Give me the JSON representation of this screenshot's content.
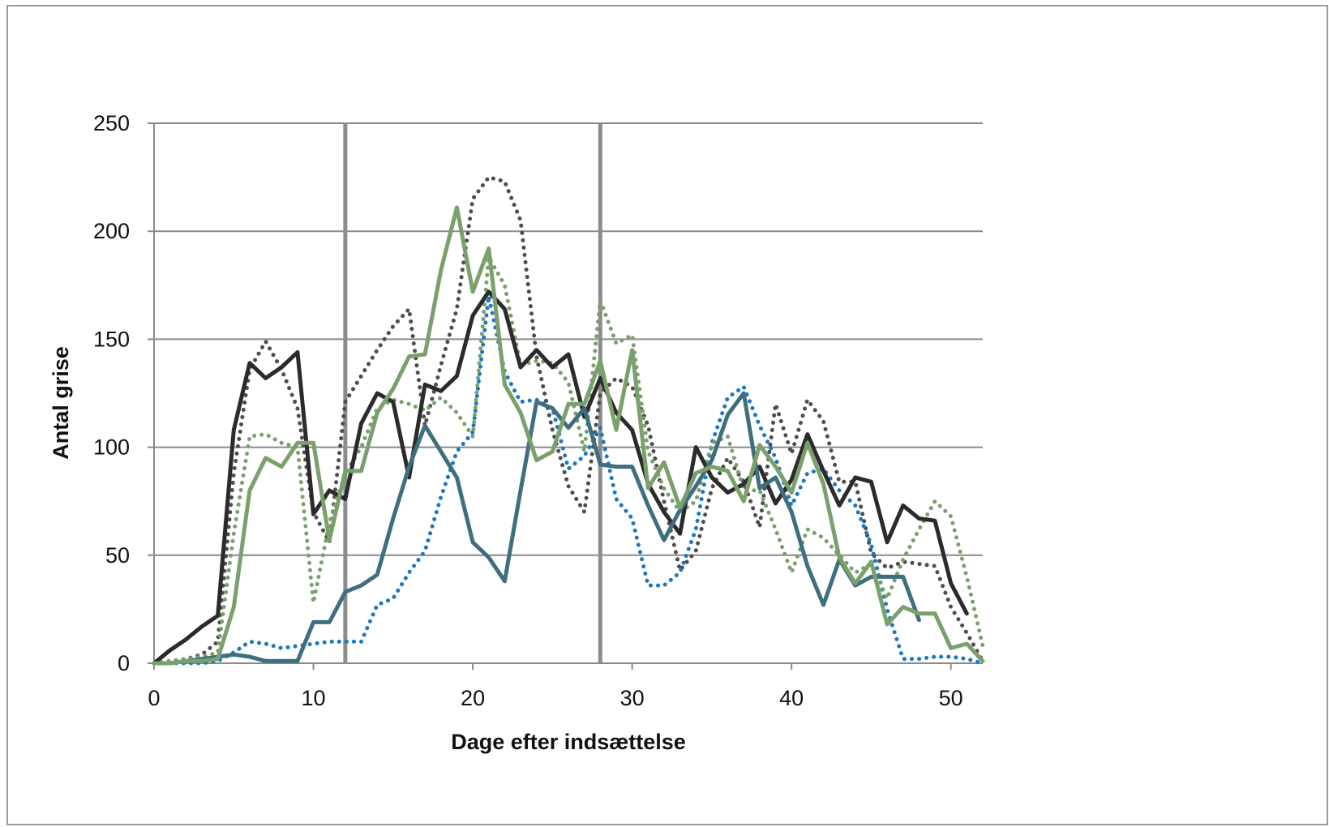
{
  "chart_data": {
    "type": "line",
    "xlabel": "Dage efter indsættelse",
    "ylabel": "Antal grise",
    "xlim": [
      0,
      52
    ],
    "ylim": [
      0,
      250
    ],
    "xticks": [
      "0",
      "10",
      "20",
      "30",
      "40",
      "50"
    ],
    "yticks": [
      "0",
      "50",
      "100",
      "150",
      "200",
      "250"
    ],
    "grid": "horizontal",
    "vlines": [
      12,
      28
    ],
    "vline_color": "#8c8c8c",
    "series": [
      {
        "style": "solid",
        "color": "#2b2b2b",
        "x": [
          0,
          1,
          2,
          3,
          4,
          5,
          6,
          7,
          8,
          9,
          10,
          11,
          12,
          13,
          14,
          15,
          16,
          17,
          18,
          19,
          20,
          21,
          22,
          23,
          24,
          25,
          26,
          27,
          28,
          29,
          30,
          31,
          32,
          33,
          34,
          35,
          36,
          37,
          38,
          39,
          40,
          41,
          42,
          43,
          44,
          45,
          46,
          47,
          48,
          49,
          50,
          51
        ],
        "y": [
          0,
          6,
          11,
          17,
          22,
          108,
          139,
          132,
          137,
          144,
          69,
          80,
          76,
          111,
          125,
          121,
          86,
          129,
          126,
          133,
          161,
          172,
          164,
          137,
          145,
          137,
          143,
          114,
          132,
          116,
          108,
          83,
          70,
          60,
          100,
          86,
          79,
          83,
          91,
          74,
          85,
          106,
          89,
          73,
          86,
          84,
          56,
          73,
          67,
          66,
          37,
          23
        ]
      },
      {
        "style": "dotted",
        "color": "#4d4d4d",
        "x": [
          0,
          1,
          2,
          3,
          4,
          5,
          6,
          7,
          8,
          9,
          10,
          11,
          12,
          13,
          14,
          15,
          16,
          17,
          18,
          19,
          20,
          21,
          22,
          23,
          24,
          25,
          26,
          27,
          28,
          29,
          30,
          31,
          32,
          33,
          34,
          35,
          36,
          37,
          38,
          39,
          40,
          41,
          42,
          43,
          44,
          45,
          46,
          47,
          48,
          49,
          50,
          51,
          52
        ],
        "y": [
          0,
          1,
          2,
          4,
          10,
          88,
          136,
          149,
          136,
          118,
          70,
          56,
          121,
          133,
          145,
          156,
          164,
          110,
          138,
          164,
          215,
          225,
          223,
          205,
          142,
          108,
          82,
          70,
          125,
          132,
          128,
          110,
          75,
          43,
          52,
          81,
          95,
          84,
          63,
          120,
          97,
          122,
          112,
          84,
          84,
          51,
          44,
          47,
          46,
          45,
          26,
          14,
          1
        ]
      },
      {
        "style": "dotted",
        "color": "#1a78c2",
        "x": [
          0,
          1,
          2,
          3,
          4,
          5,
          6,
          7,
          8,
          9,
          10,
          11,
          12,
          13,
          14,
          15,
          16,
          17,
          18,
          19,
          20,
          21,
          22,
          23,
          24,
          25,
          26,
          27,
          28,
          29,
          30,
          31,
          32,
          33,
          34,
          35,
          36,
          37,
          38,
          39,
          40,
          41,
          42,
          43,
          44,
          45,
          46,
          47,
          48,
          49,
          50,
          51,
          52
        ],
        "y": [
          0,
          0,
          0,
          0,
          1,
          5,
          10,
          9,
          7,
          8,
          9,
          10,
          10,
          10,
          27,
          30,
          42,
          52,
          77,
          98,
          107,
          170,
          135,
          121,
          122,
          118,
          90,
          96,
          109,
          76,
          67,
          36,
          36,
          42,
          62,
          102,
          123,
          128,
          110,
          95,
          73,
          88,
          90,
          80,
          73,
          55,
          25,
          2,
          2,
          3,
          3,
          2,
          0
        ]
      },
      {
        "style": "dotted",
        "color": "#7aa06c",
        "x": [
          0,
          1,
          2,
          3,
          4,
          5,
          6,
          7,
          8,
          9,
          10,
          11,
          12,
          13,
          14,
          15,
          16,
          17,
          18,
          19,
          20,
          21,
          22,
          23,
          24,
          25,
          26,
          27,
          28,
          29,
          30,
          31,
          32,
          33,
          34,
          35,
          36,
          37,
          38,
          39,
          40,
          41,
          42,
          43,
          44,
          45,
          46,
          47,
          48,
          49,
          50,
          51,
          52
        ],
        "y": [
          0,
          1,
          2,
          3,
          5,
          60,
          105,
          106,
          102,
          100,
          28,
          65,
          88,
          100,
          118,
          122,
          120,
          117,
          123,
          116,
          105,
          188,
          175,
          138,
          140,
          139,
          130,
          98,
          168,
          148,
          152,
          98,
          81,
          70,
          75,
          102,
          105,
          80,
          80,
          62,
          42,
          62,
          58,
          50,
          42,
          46,
          30,
          48,
          62,
          75,
          68,
          40,
          8
        ]
      },
      {
        "style": "solid",
        "color": "#3f6f7f",
        "x": [
          0,
          1,
          2,
          3,
          4,
          5,
          6,
          7,
          8,
          9,
          10,
          11,
          12,
          13,
          14,
          15,
          16,
          17,
          18,
          19,
          20,
          21,
          22,
          23,
          24,
          25,
          26,
          27,
          28,
          29,
          30,
          31,
          32,
          33,
          34,
          35,
          36,
          37,
          38,
          39,
          40,
          41,
          42,
          43,
          44,
          45,
          46,
          47,
          48
        ],
        "y": [
          0,
          0,
          1,
          2,
          3,
          4,
          3,
          1,
          1,
          1,
          19,
          19,
          33,
          36,
          41,
          67,
          91,
          110,
          98,
          86,
          56,
          49,
          38,
          80,
          121,
          118,
          109,
          118,
          92,
          91,
          91,
          73,
          57,
          71,
          82,
          94,
          115,
          125,
          81,
          86,
          70,
          45,
          27,
          48,
          36,
          40,
          40,
          40,
          20
        ]
      },
      {
        "style": "solid",
        "color": "#7aa06c",
        "x": [
          0,
          1,
          2,
          3,
          4,
          5,
          6,
          7,
          8,
          9,
          10,
          11,
          12,
          13,
          14,
          15,
          16,
          17,
          18,
          19,
          20,
          21,
          22,
          23,
          24,
          25,
          26,
          27,
          28,
          29,
          30,
          31,
          32,
          33,
          34,
          35,
          36,
          37,
          38,
          39,
          40,
          41,
          42,
          43,
          44,
          45,
          46,
          47,
          48,
          49,
          50,
          51,
          52
        ],
        "y": [
          0,
          0,
          1,
          1,
          2,
          26,
          80,
          95,
          91,
          102,
          102,
          57,
          89,
          89,
          116,
          127,
          142,
          143,
          182,
          211,
          172,
          192,
          129,
          116,
          94,
          98,
          120,
          120,
          140,
          108,
          145,
          81,
          93,
          72,
          88,
          91,
          89,
          75,
          101,
          91,
          79,
          102,
          83,
          49,
          37,
          47,
          18,
          26,
          23,
          23,
          7,
          9,
          1
        ]
      }
    ]
  }
}
